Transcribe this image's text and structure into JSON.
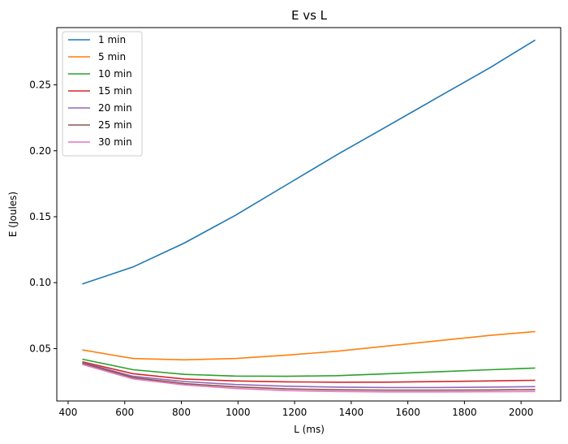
{
  "chart_data": {
    "type": "line",
    "title": "E vs L",
    "xlabel": "L (ms)",
    "ylabel": "E (Joules)",
    "xlim": [
      360,
      2140
    ],
    "ylim": [
      0.0103,
      0.2934
    ],
    "xticks": [
      400,
      600,
      800,
      1000,
      1200,
      1400,
      1600,
      1800,
      2000
    ],
    "yticks": [
      0.05,
      0.1,
      0.15,
      0.2,
      0.25
    ],
    "ytick_labels": [
      "0.05",
      "0.10",
      "0.15",
      "0.20",
      "0.25"
    ],
    "grid": false,
    "legend_position": "top-left",
    "x": [
      450,
      630,
      810,
      990,
      1170,
      1350,
      1530,
      1710,
      1890,
      2050
    ],
    "series": [
      {
        "name": "1 min",
        "color": "#1f77b4",
        "values": [
          0.099,
          0.112,
          0.13,
          0.151,
          0.174,
          0.197,
          0.219,
          0.241,
          0.263,
          0.284
        ]
      },
      {
        "name": "5 min",
        "color": "#ff7f0e",
        "values": [
          0.049,
          0.0425,
          0.0415,
          0.0425,
          0.045,
          0.048,
          0.052,
          0.056,
          0.06,
          0.063
        ]
      },
      {
        "name": "10 min",
        "color": "#2ca02c",
        "values": [
          0.042,
          0.034,
          0.0305,
          0.0292,
          0.029,
          0.0295,
          0.031,
          0.0325,
          0.034,
          0.0353
        ]
      },
      {
        "name": "15 min",
        "color": "#d62728",
        "values": [
          0.04,
          0.031,
          0.027,
          0.0255,
          0.0248,
          0.0245,
          0.0246,
          0.025,
          0.0255,
          0.026
        ]
      },
      {
        "name": "20 min",
        "color": "#9467bd",
        "values": [
          0.0395,
          0.029,
          0.025,
          0.0228,
          0.0215,
          0.0208,
          0.0205,
          0.0205,
          0.0208,
          0.0212
        ]
      },
      {
        "name": "25 min",
        "color": "#8c564b",
        "values": [
          0.039,
          0.028,
          0.0235,
          0.021,
          0.0195,
          0.0188,
          0.0185,
          0.0185,
          0.0187,
          0.019
        ]
      },
      {
        "name": "30 min",
        "color": "#e377c2",
        "values": [
          0.038,
          0.027,
          0.0225,
          0.0198,
          0.0182,
          0.0175,
          0.0172,
          0.0172,
          0.0173,
          0.0175
        ]
      }
    ]
  }
}
